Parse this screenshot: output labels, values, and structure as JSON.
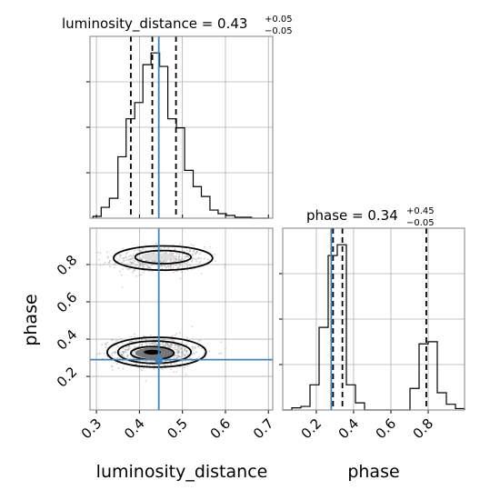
{
  "chart_data": {
    "type": "corner",
    "parameters": [
      "luminosity_distance",
      "phase"
    ],
    "truths": {
      "luminosity_distance": 0.445,
      "phase": 0.29
    },
    "grid": true,
    "colors": {
      "hist": "#000000",
      "truth": "#4682b4",
      "grid": "#b0b0b0",
      "samples": "#9a9a9a",
      "spine": "#808080"
    },
    "luminosity_distance": {
      "title_prefix": "luminosity_distance = 0.43",
      "err_plus": "+0.05",
      "err_minus": "−0.05",
      "xlim": [
        0.285,
        0.71
      ],
      "xticks": [
        0.3,
        0.4,
        0.5,
        0.6,
        0.7
      ],
      "xtick_labels": [
        "0.3",
        "0.4",
        "0.5",
        "0.6",
        "0.7"
      ],
      "xlabel": "luminosity_distance",
      "quantiles": [
        0.38,
        0.43,
        0.485
      ],
      "hist_edges": [
        0.292,
        0.311,
        0.33,
        0.35,
        0.369,
        0.389,
        0.408,
        0.427,
        0.447,
        0.466,
        0.486,
        0.505,
        0.525,
        0.544,
        0.564,
        0.583,
        0.602,
        0.622,
        0.641,
        0.661,
        0.68,
        0.7
      ],
      "hist_values": [
        2,
        12,
        22,
        68,
        110,
        128,
        170,
        183,
        168,
        110,
        100,
        53,
        35,
        24,
        9,
        5,
        3,
        1,
        1,
        0,
        0
      ]
    },
    "phase": {
      "title_prefix": "phase = 0.34",
      "err_plus": "+0.45",
      "err_minus": "−0.05",
      "xlim": [
        0.02,
        0.995
      ],
      "xticks": [
        0.2,
        0.4,
        0.6,
        0.8
      ],
      "xtick_labels": [
        "0.2",
        "0.4",
        "0.6",
        "0.8"
      ],
      "xlabel": "phase",
      "ylabel": "phase",
      "yticks": [
        0.2,
        0.4,
        0.6,
        0.8
      ],
      "ytick_labels": [
        "0.2",
        "0.4",
        "0.6",
        "0.8"
      ],
      "quantiles": [
        0.29,
        0.34,
        0.79
      ],
      "hist_edges": [
        0.02,
        0.0688,
        0.1175,
        0.1663,
        0.215,
        0.2638,
        0.3125,
        0.3613,
        0.41,
        0.4588,
        0.5075,
        0.5563,
        0.605,
        0.6538,
        0.7025,
        0.7513,
        0.8,
        0.8488,
        0.8975,
        0.9463,
        0.995
      ],
      "hist_values": [
        0,
        3,
        5,
        35,
        115,
        215,
        230,
        35,
        10,
        0,
        0,
        0,
        0,
        0,
        30,
        92,
        95,
        24,
        8,
        2
      ]
    },
    "joint": {
      "clusters": [
        {
          "x": 0.445,
          "y": 0.825,
          "sx": 0.055,
          "sy": 0.035,
          "n": 520
        },
        {
          "x": 0.44,
          "y": 0.33,
          "sx": 0.05,
          "sy": 0.04,
          "n": 780
        }
      ],
      "contours": [
        [
          {
            "x": 0.455,
            "y": 0.835,
            "rx": 0.115,
            "ry": 0.065
          },
          {
            "x": 0.455,
            "y": 0.84,
            "rx": 0.065,
            "ry": 0.035
          }
        ],
        [
          {
            "x": 0.44,
            "y": 0.33,
            "rx": 0.115,
            "ry": 0.08
          },
          {
            "x": 0.435,
            "y": 0.33,
            "rx": 0.085,
            "ry": 0.06
          },
          {
            "x": 0.43,
            "y": 0.325,
            "rx": 0.05,
            "ry": 0.035
          }
        ]
      ],
      "density_blobs": [
        {
          "x": 0.435,
          "y": 0.325,
          "rx": 0.045,
          "ry": 0.03,
          "shade": "#777777"
        },
        {
          "x": 0.43,
          "y": 0.33,
          "rx": 0.02,
          "ry": 0.013,
          "shade": "#000000"
        },
        {
          "x": 0.445,
          "y": 0.84,
          "rx": 0.04,
          "ry": 0.02,
          "shade": "#dddddd"
        }
      ]
    }
  }
}
